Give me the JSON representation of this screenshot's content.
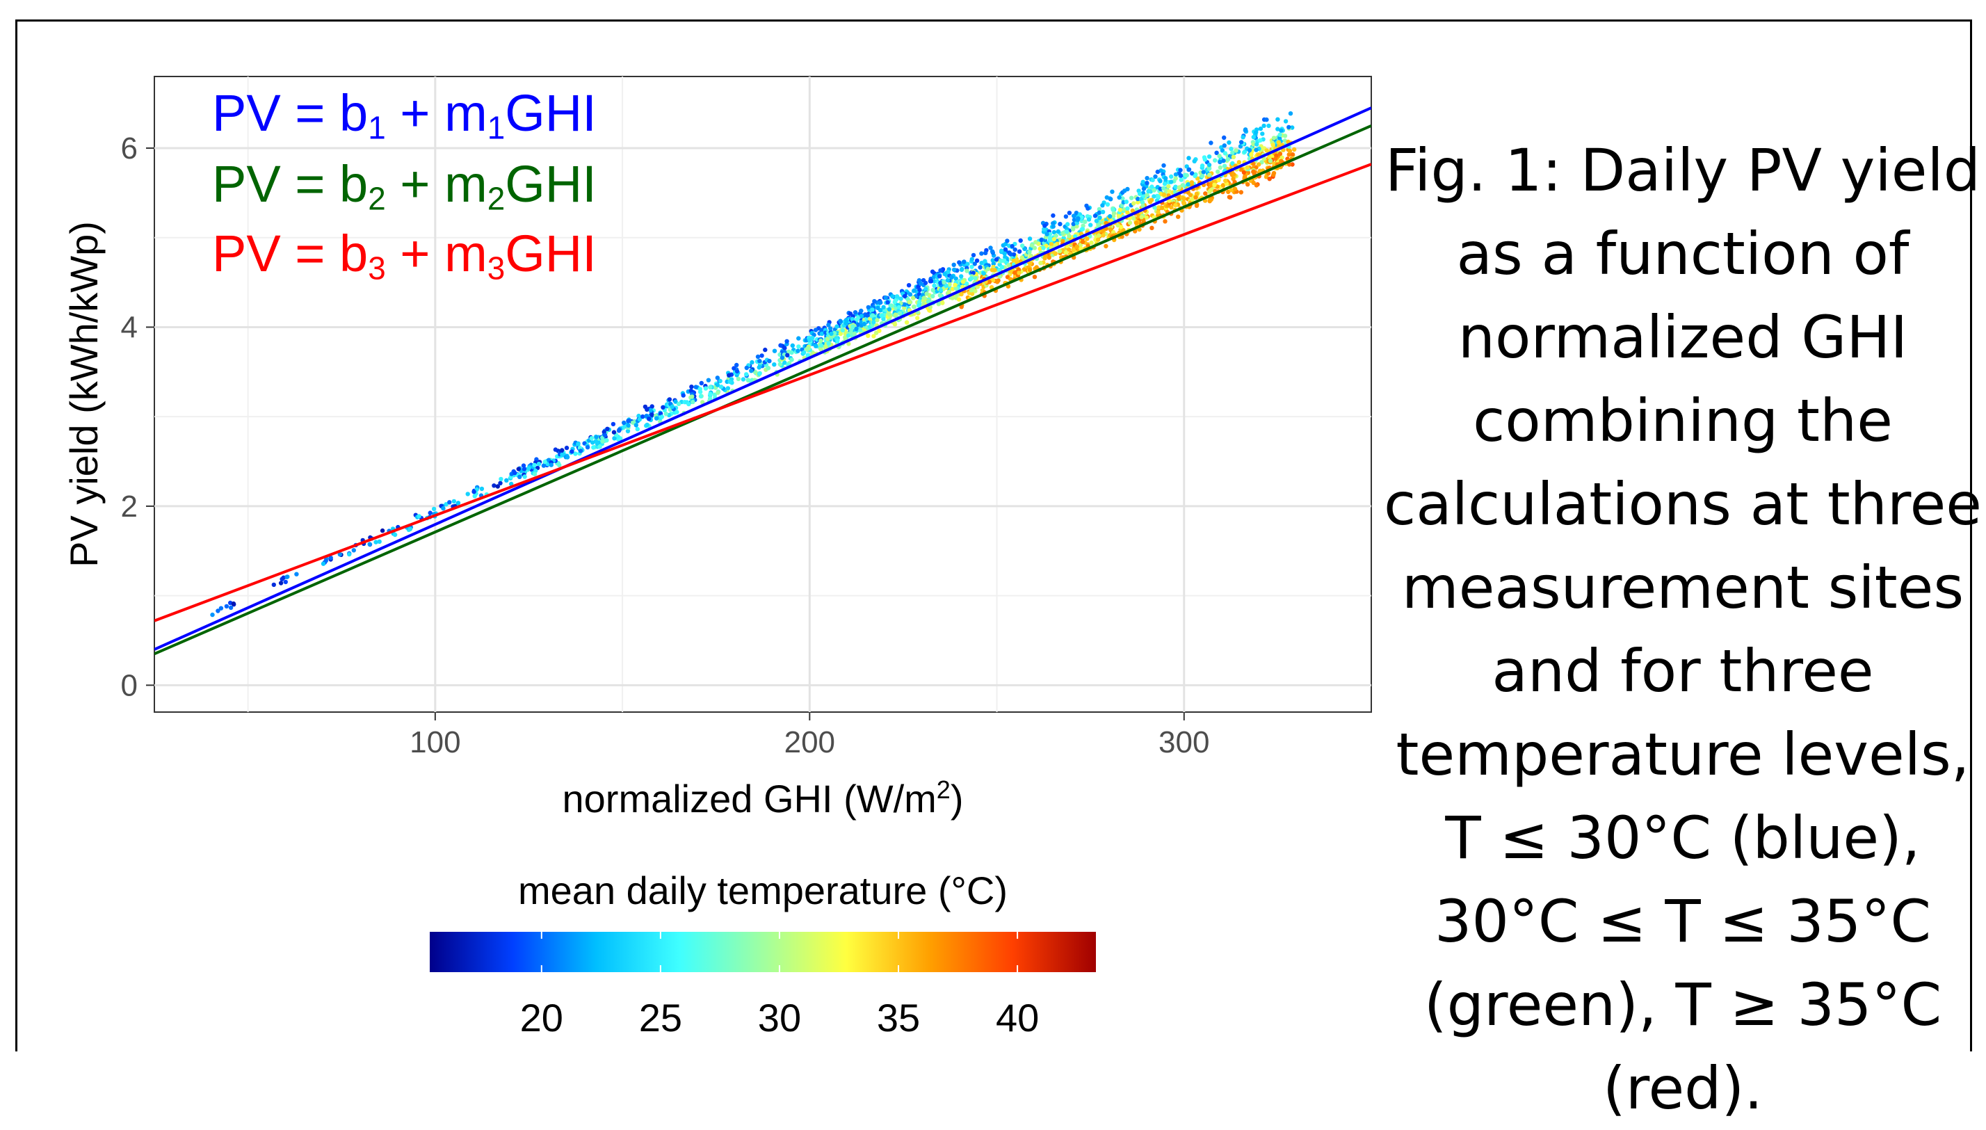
{
  "chart_data": {
    "type": "scatter",
    "title": "",
    "xlabel": "normalized GHI (W/m",
    "xlabel_sup": "2",
    "xlabel_close": ")",
    "ylabel": "PV yield (kWh/kWp)",
    "xlim": [
      25,
      350
    ],
    "ylim": [
      -0.3,
      6.8
    ],
    "x_ticks": [
      100,
      200,
      300
    ],
    "y_ticks": [
      0,
      2,
      4,
      6
    ],
    "grid": true,
    "series": [
      {
        "name": "PV = b1 + m1GHI",
        "color": "#0000ff",
        "line": [
          [
            25,
            0.4
          ],
          [
            350,
            6.45
          ]
        ]
      },
      {
        "name": "PV = b2 + m2GHI",
        "color": "#006400",
        "line": [
          [
            25,
            0.35
          ],
          [
            350,
            6.25
          ]
        ]
      },
      {
        "name": "PV = b3 + m3GHI",
        "color": "#ff0000",
        "line": [
          [
            25,
            0.72
          ],
          [
            350,
            5.82
          ]
        ]
      }
    ],
    "scatter_note_points": [
      [
        44,
        0.68
      ],
      [
        60,
        0.95
      ],
      [
        72,
        1.15
      ],
      [
        80,
        1.3
      ],
      [
        86,
        1.42
      ],
      [
        92,
        1.55
      ],
      [
        97,
        1.63
      ],
      [
        102,
        1.75
      ],
      [
        108,
        1.85
      ],
      [
        113,
        1.95
      ],
      [
        118,
        2.05
      ],
      [
        123,
        2.15
      ],
      [
        130,
        2.3
      ],
      [
        136,
        2.4
      ],
      [
        142,
        2.5
      ],
      [
        148,
        2.62
      ],
      [
        155,
        2.75
      ],
      [
        160,
        2.85
      ],
      [
        166,
        2.98
      ],
      [
        172,
        3.1
      ],
      [
        178,
        3.22
      ],
      [
        184,
        3.35
      ],
      [
        190,
        3.47
      ],
      [
        196,
        3.58
      ],
      [
        202,
        3.7
      ],
      [
        208,
        3.82
      ],
      [
        214,
        3.95
      ],
      [
        220,
        4.05
      ],
      [
        226,
        4.18
      ],
      [
        232,
        4.3
      ],
      [
        238,
        4.42
      ],
      [
        244,
        4.55
      ],
      [
        250,
        4.67
      ],
      [
        256,
        4.78
      ],
      [
        262,
        4.9
      ],
      [
        268,
        5.02
      ],
      [
        274,
        5.13
      ],
      [
        280,
        5.25
      ],
      [
        286,
        5.38
      ],
      [
        292,
        5.48
      ],
      [
        298,
        5.6
      ],
      [
        304,
        5.72
      ],
      [
        310,
        5.85
      ],
      [
        316,
        5.95
      ],
      [
        322,
        6.05
      ],
      [
        326,
        6.15
      ]
    ],
    "colorbar": {
      "title": "mean daily temperature (°C)",
      "ticks": [
        20,
        25,
        30,
        35,
        40
      ],
      "range": [
        15.3,
        43.3
      ],
      "colors": [
        "#00008b",
        "#0040ff",
        "#00bfff",
        "#40ffff",
        "#a0ffa0",
        "#ffff40",
        "#ffa000",
        "#ff4000",
        "#a00000"
      ]
    }
  },
  "legend": {
    "eq1": {
      "lhs": "PV = b",
      "sub": "1",
      "mid": " + m",
      "sub2": "1",
      "rhs": "GHI"
    },
    "eq2": {
      "lhs": "PV = b",
      "sub": "2",
      "mid": " + m",
      "sub2": "2",
      "rhs": "GHI"
    },
    "eq3": {
      "lhs": "PV = b",
      "sub": "3",
      "mid": " + m",
      "sub2": "3",
      "rhs": "GHI"
    }
  },
  "caption": {
    "text": "Fig. 1: Daily PV yield as a function of normalized GHI combining the calculations at three measurement sites and for three temperature levels, T ≤ 30°C (blue), 30°C ≤ T ≤ 35°C (green), T ≥ 35°C (red)."
  }
}
